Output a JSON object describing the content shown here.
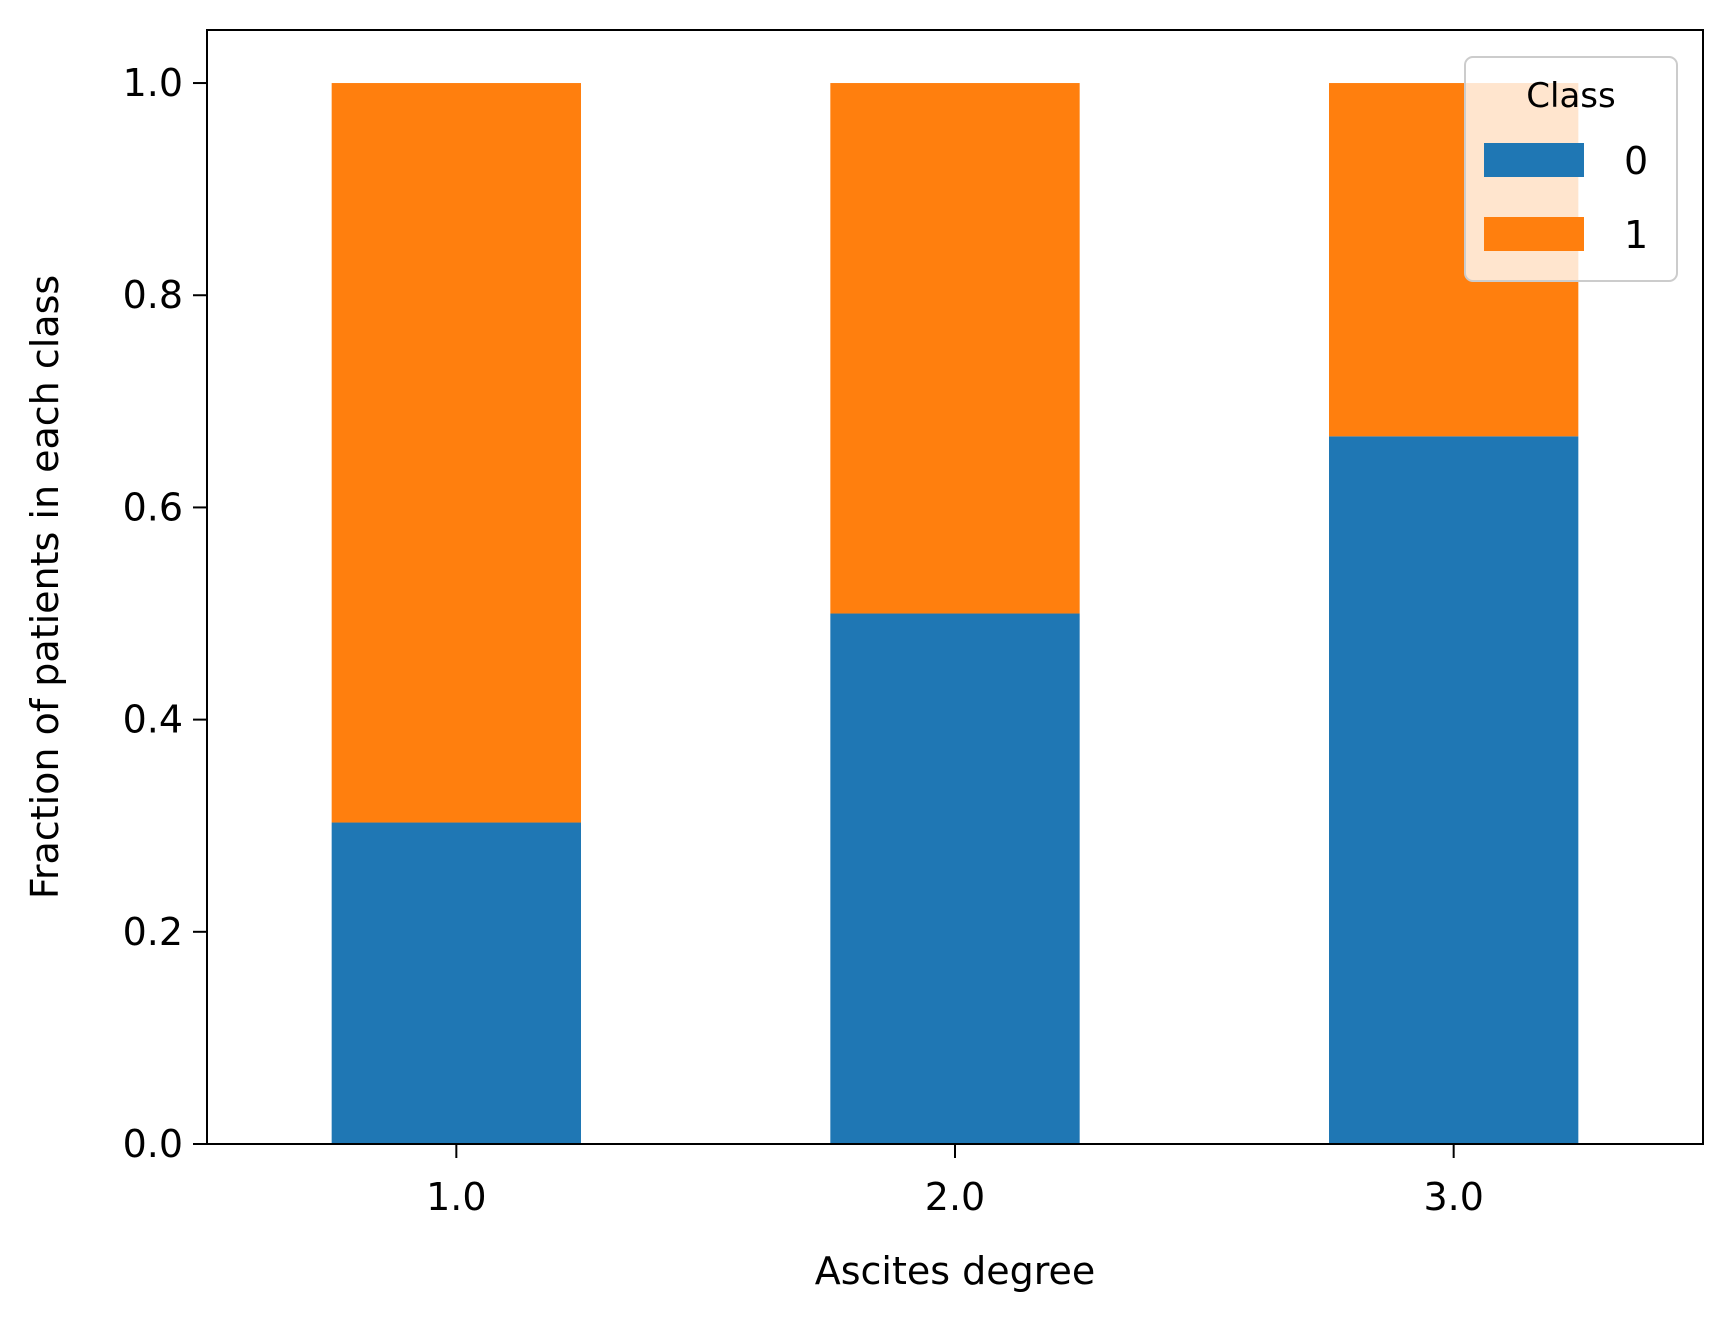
{
  "chart_data": {
    "type": "bar",
    "stacked": true,
    "categories": [
      "1.0",
      "2.0",
      "3.0"
    ],
    "series": [
      {
        "name": "0",
        "values": [
          0.303,
          0.5,
          0.667
        ],
        "color": "#1f77b4"
      },
      {
        "name": "1",
        "values": [
          0.697,
          0.5,
          0.333
        ],
        "color": "#ff7f0e"
      }
    ],
    "xlabel": "Ascites degree",
    "ylabel": "Fraction of patients in each class",
    "ylim": [
      0,
      1.05
    ],
    "yticks": [
      0.0,
      0.2,
      0.4,
      0.6,
      0.8,
      1.0
    ],
    "ytick_labels": [
      "0.0",
      "0.2",
      "0.4",
      "0.6",
      "0.8",
      "1.0"
    ],
    "grid": false,
    "legend": {
      "title": "Class",
      "placement": "top-right"
    }
  }
}
